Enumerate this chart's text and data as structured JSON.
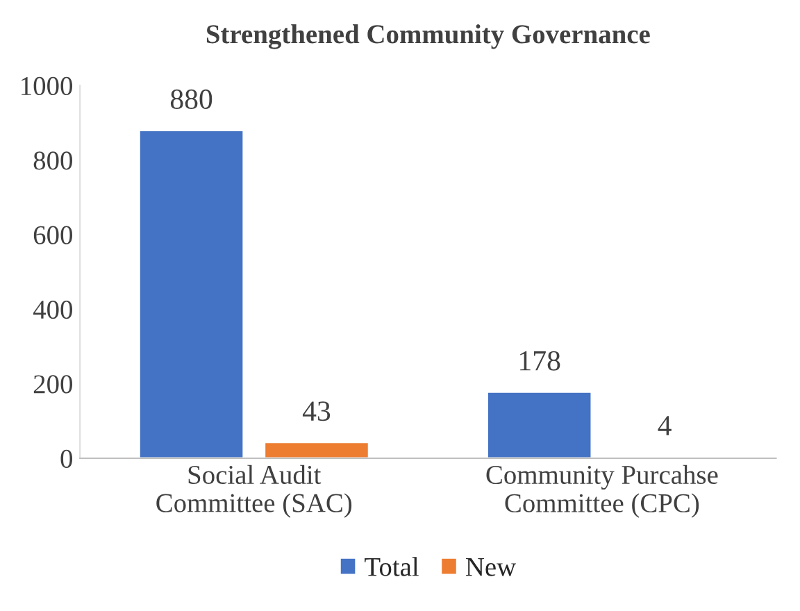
{
  "chart_data": {
    "type": "bar",
    "title": "Strengthened Community Governance",
    "categories": [
      "Social Audit\nCommittee (SAC)",
      "Community Purcahse\nCommittee (CPC)"
    ],
    "series": [
      {
        "name": "Total",
        "color": "#4472c4",
        "values": [
          880,
          178
        ]
      },
      {
        "name": "New",
        "color": "#ed7d31",
        "values": [
          43,
          4
        ]
      }
    ],
    "ylim": [
      0,
      1000
    ],
    "yticks": [
      0,
      200,
      400,
      600,
      800,
      1000
    ],
    "data_labels": true,
    "grid": false,
    "legend": "bottom"
  }
}
